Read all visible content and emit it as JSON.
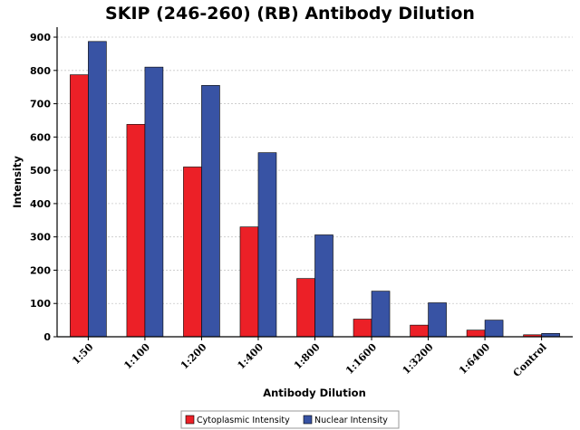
{
  "chart_data": {
    "type": "bar",
    "title": "SKIP (246-260) (RB) Antibody Dilution",
    "xlabel": "Antibody Dilution",
    "ylabel": "Intensity",
    "ylim": [
      0,
      930
    ],
    "yticks": [
      0,
      100,
      200,
      300,
      400,
      500,
      600,
      700,
      800,
      900
    ],
    "grid": "horizontal dashed",
    "legend_position": "bottom-center",
    "categories": [
      "1:50",
      "1:100",
      "1:200",
      "1:400",
      "1:800",
      "1:1600",
      "1:3200",
      "1:6400",
      "Control"
    ],
    "series": [
      {
        "name": "Cytoplasmic Intensity",
        "color": "#ec2027",
        "values": [
          787,
          638,
          510,
          330,
          175,
          53,
          35,
          20,
          6
        ]
      },
      {
        "name": "Nuclear Intensity",
        "color": "#3853a4",
        "values": [
          887,
          810,
          755,
          553,
          306,
          137,
          102,
          50,
          10
        ]
      }
    ]
  }
}
